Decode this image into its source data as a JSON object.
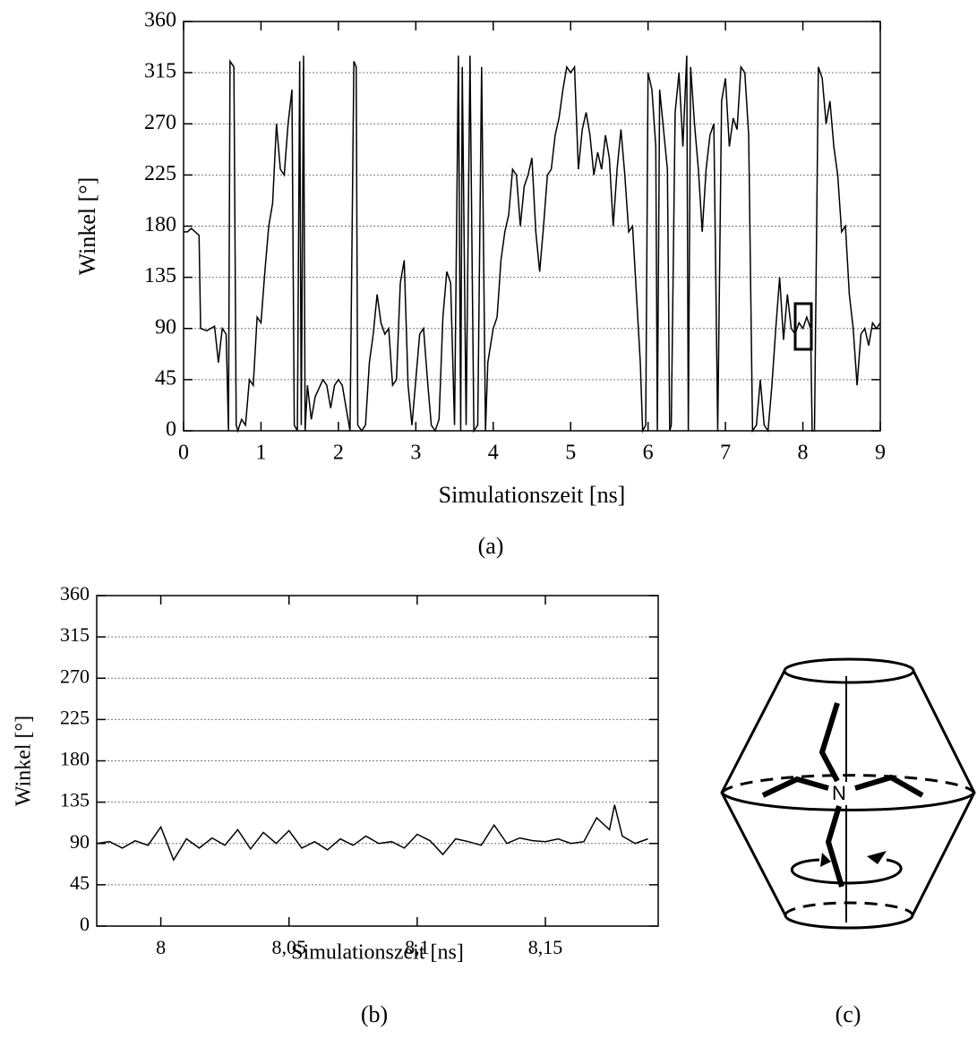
{
  "chart_data": [
    {
      "type": "line",
      "y_label": "Winkel [°]",
      "x_label": "Simulationszeit [ns]",
      "xlim": [
        0,
        9
      ],
      "xticks": [
        0,
        1,
        2,
        3,
        4,
        5,
        6,
        7,
        8,
        9
      ],
      "ylim": [
        0,
        360
      ],
      "yticks": [
        0,
        45,
        90,
        135,
        180,
        225,
        270,
        315,
        360
      ],
      "grid": true,
      "series": [
        {
          "color": "#000000",
          "x": [
            0,
            0.05,
            0.1,
            0.2,
            0.22,
            0.3,
            0.4,
            0.45,
            0.5,
            0.55,
            0.58,
            0.6,
            0.65,
            0.68,
            0.7,
            0.75,
            0.8,
            0.85,
            0.9,
            0.95,
            1.0,
            1.05,
            1.1,
            1.15,
            1.2,
            1.25,
            1.3,
            1.35,
            1.4,
            1.43,
            1.47,
            1.5,
            1.52,
            1.55,
            1.57,
            1.6,
            1.65,
            1.7,
            1.8,
            1.85,
            1.9,
            1.95,
            2.0,
            2.05,
            2.1,
            2.15,
            2.2,
            2.23,
            2.25,
            2.3,
            2.35,
            2.4,
            2.45,
            2.5,
            2.55,
            2.6,
            2.65,
            2.7,
            2.75,
            2.8,
            2.85,
            2.9,
            2.95,
            3.0,
            3.05,
            3.1,
            3.15,
            3.2,
            3.25,
            3.3,
            3.35,
            3.4,
            3.45,
            3.5,
            3.55,
            3.58,
            3.6,
            3.65,
            3.7,
            3.75,
            3.8,
            3.85,
            3.9,
            3.93,
            4.0,
            4.05,
            4.1,
            4.15,
            4.2,
            4.25,
            4.3,
            4.35,
            4.4,
            4.45,
            4.5,
            4.55,
            4.6,
            4.65,
            4.7,
            4.75,
            4.8,
            4.85,
            4.9,
            4.95,
            5.0,
            5.05,
            5.1,
            5.15,
            5.2,
            5.25,
            5.3,
            5.35,
            5.4,
            5.45,
            5.5,
            5.55,
            5.6,
            5.65,
            5.7,
            5.75,
            5.8,
            5.85,
            5.9,
            5.93,
            5.97,
            6.0,
            6.05,
            6.1,
            6.12,
            6.15,
            6.2,
            6.25,
            6.28,
            6.3,
            6.35,
            6.4,
            6.45,
            6.5,
            6.52,
            6.55,
            6.6,
            6.65,
            6.7,
            6.75,
            6.8,
            6.85,
            6.9,
            6.95,
            7.0,
            7.05,
            7.1,
            7.15,
            7.2,
            7.25,
            7.3,
            7.35,
            7.4,
            7.45,
            7.5,
            7.55,
            7.6,
            7.65,
            7.7,
            7.75,
            7.8,
            7.85,
            7.9,
            7.95,
            8.0,
            8.05,
            8.1,
            8.12,
            8.15,
            8.2,
            8.25,
            8.3,
            8.35,
            8.4,
            8.45,
            8.5,
            8.55,
            8.6,
            8.65,
            8.7,
            8.75,
            8.8,
            8.85,
            8.9,
            8.95,
            9.0
          ],
          "values": [
            175,
            175,
            178,
            172,
            90,
            88,
            92,
            60,
            90,
            85,
            0,
            325,
            320,
            5,
            0,
            10,
            5,
            45,
            40,
            100,
            95,
            140,
            180,
            200,
            270,
            230,
            225,
            270,
            300,
            5,
            0,
            325,
            5,
            330,
            0,
            40,
            10,
            30,
            45,
            40,
            20,
            40,
            45,
            40,
            20,
            0,
            325,
            320,
            5,
            0,
            5,
            60,
            85,
            120,
            95,
            85,
            90,
            40,
            45,
            130,
            150,
            40,
            5,
            45,
            85,
            90,
            45,
            5,
            0,
            10,
            100,
            140,
            130,
            5,
            330,
            0,
            320,
            5,
            330,
            0,
            5,
            320,
            0,
            60,
            90,
            100,
            150,
            175,
            190,
            230,
            225,
            180,
            215,
            225,
            240,
            175,
            140,
            180,
            225,
            230,
            260,
            275,
            300,
            320,
            315,
            320,
            230,
            265,
            280,
            260,
            225,
            245,
            230,
            260,
            240,
            180,
            230,
            265,
            225,
            175,
            180,
            120,
            60,
            0,
            5,
            315,
            300,
            250,
            0,
            300,
            265,
            230,
            0,
            5,
            280,
            315,
            250,
            330,
            0,
            320,
            270,
            230,
            175,
            230,
            260,
            270,
            0,
            290,
            310,
            250,
            275,
            265,
            320,
            315,
            260,
            0,
            5,
            45,
            5,
            0,
            40,
            90,
            135,
            80,
            120,
            90,
            85,
            95,
            90,
            100,
            90,
            0,
            0,
            320,
            310,
            270,
            290,
            250,
            225,
            175,
            180,
            120,
            90,
            40,
            85,
            90,
            75,
            95,
            90,
            95
          ]
        }
      ]
    },
    {
      "type": "line",
      "y_label": "Winkel [°]",
      "x_label": "Simulationszeit [ns]",
      "xlim": [
        7.975,
        8.194
      ],
      "xticks": [
        8,
        {
          "value": 8.05,
          "label": "8,05"
        },
        {
          "value": 8.1,
          "label": "8,1"
        },
        {
          "value": 8.15,
          "label": "8,15"
        }
      ],
      "ylim": [
        0,
        360
      ],
      "yticks": [
        0,
        45,
        90,
        135,
        180,
        225,
        270,
        315,
        360
      ],
      "grid": true,
      "series": [
        {
          "color": "#000000",
          "x": [
            7.975,
            7.98,
            7.985,
            7.99,
            7.995,
            8,
            8.005,
            8.01,
            8.015,
            8.02,
            8.025,
            8.03,
            8.035,
            8.04,
            8.045,
            8.05,
            8.055,
            8.06,
            8.065,
            8.07,
            8.075,
            8.08,
            8.085,
            8.09,
            8.095,
            8.1,
            8.105,
            8.11,
            8.115,
            8.12,
            8.125,
            8.13,
            8.135,
            8.14,
            8.145,
            8.15,
            8.155,
            8.16,
            8.165,
            8.17,
            8.175,
            8.177,
            8.18,
            8.185,
            8.19
          ],
          "values": [
            90,
            92,
            85,
            93,
            88,
            108,
            72,
            95,
            85,
            96,
            88,
            105,
            84,
            102,
            90,
            104,
            85,
            92,
            83,
            95,
            88,
            98,
            90,
            92,
            85,
            100,
            93,
            78,
            95,
            92,
            88,
            110,
            90,
            96,
            93,
            92,
            95,
            90,
            92,
            118,
            105,
            132,
            98,
            90,
            95
          ]
        }
      ]
    }
  ],
  "captions": [
    "(a)",
    "(b)",
    "(c)"
  ],
  "diagram": {
    "atom_label": "N"
  }
}
